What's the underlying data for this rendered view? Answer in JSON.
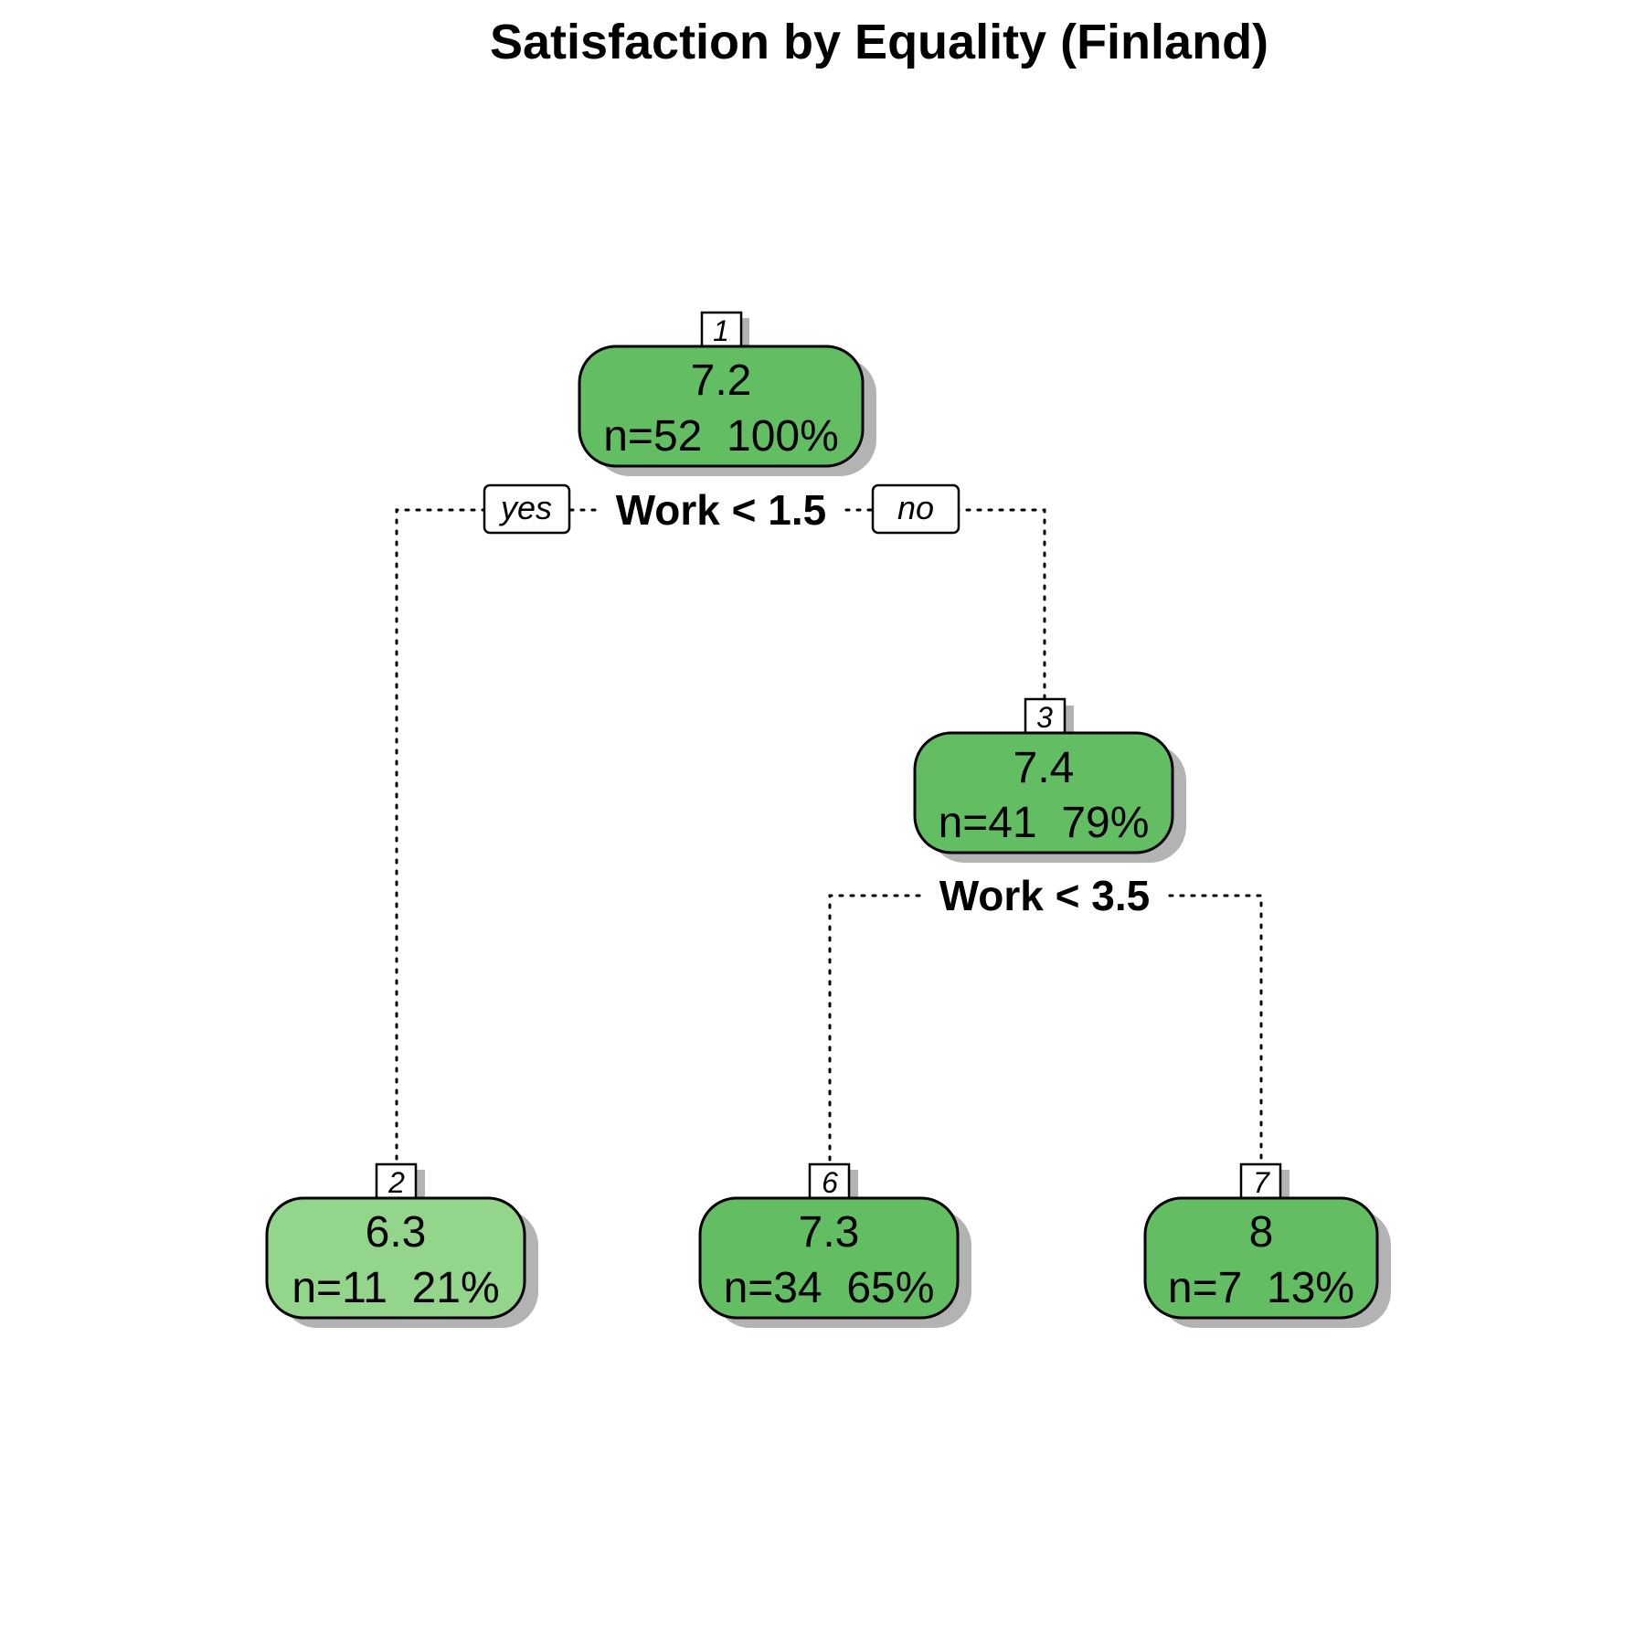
{
  "title": "Satisfaction by Equality (Finland)",
  "colors": {
    "node_fill_dark": "#63be63",
    "node_fill_light": "#93d58a",
    "node_border": "#000000",
    "shadow": "#b3b3b3",
    "background": "#ffffff"
  },
  "tree": {
    "nodes": [
      {
        "id": "1",
        "value": "7.2",
        "stats": "n=52  100%",
        "fill": "#63be63"
      },
      {
        "id": "2",
        "value": "6.3",
        "stats": "n=11  21%",
        "fill": "#93d58a"
      },
      {
        "id": "3",
        "value": "7.4",
        "stats": "n=41  79%",
        "fill": "#63be63"
      },
      {
        "id": "6",
        "value": "7.3",
        "stats": "n=34  65%",
        "fill": "#63be63"
      },
      {
        "id": "7",
        "value": "8",
        "stats": "n=7  13%",
        "fill": "#63be63"
      }
    ],
    "splits": [
      {
        "node": "1",
        "label": "Work < 1.5",
        "left": "2",
        "right": "3"
      },
      {
        "node": "3",
        "label": "Work < 3.5",
        "left": "6",
        "right": "7"
      }
    ],
    "branch_labels": {
      "yes": "yes",
      "no": "no"
    }
  }
}
